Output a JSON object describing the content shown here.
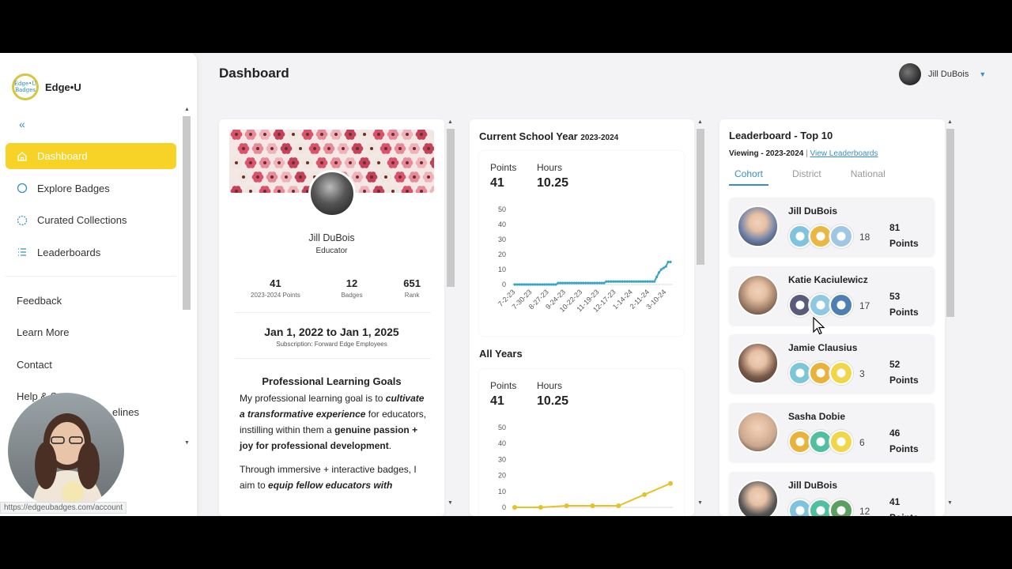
{
  "app": {
    "brand": "Edge•U",
    "logo_text": "Edge•U Badges"
  },
  "sidebar": {
    "collapse_label": "«",
    "items": [
      {
        "label": "Dashboard",
        "icon": "home-icon",
        "active": true
      },
      {
        "label": "Explore Badges",
        "icon": "circle-icon",
        "active": false
      },
      {
        "label": "Curated Collections",
        "icon": "dashed-circle-icon",
        "active": false
      },
      {
        "label": "Leaderboards",
        "icon": "list-icon",
        "active": false
      }
    ],
    "links": [
      "Feedback",
      "Learn More",
      "Contact",
      "Help & S",
      "elines"
    ]
  },
  "status_url": "https://edgeubadges.com/account",
  "header": {
    "title": "Dashboard",
    "user_name": "Jill DuBois"
  },
  "profile": {
    "name": "Jill DuBois",
    "role": "Educator",
    "stats": [
      {
        "value": "41",
        "label": "2023-2024 Points"
      },
      {
        "value": "12",
        "label": "Badges"
      },
      {
        "value": "651",
        "label": "Rank"
      }
    ],
    "subscription_range": "Jan 1, 2022 to Jan 1, 2025",
    "subscription_name": "Subscription: Forward Edge Employees",
    "goals_title": "Professional Learning Goals",
    "goals_p1_a": "My professional learning goal is to ",
    "goals_p1_b": "cultivate a transformative experience",
    "goals_p1_c": " for educators, instilling within them a ",
    "goals_p1_d": "genuine passion + joy for professional development",
    "goals_p1_e": ".",
    "goals_p2_a": "Through immersive + interactive badges, I aim to ",
    "goals_p2_b": "equip fellow educators with"
  },
  "current_year": {
    "title": "Current School Year",
    "year": "2023-2024",
    "points_label": "Points",
    "points_value": "41",
    "hours_label": "Hours",
    "hours_value": "10.25"
  },
  "all_years": {
    "title": "All Years",
    "points_label": "Points",
    "points_value": "41",
    "hours_label": "Hours",
    "hours_value": "10.25"
  },
  "chart_data": [
    {
      "type": "line",
      "title": "Current School Year 2023-2024",
      "ylim": [
        0,
        50
      ],
      "yticks": [
        0,
        10,
        20,
        30,
        40,
        50
      ],
      "x_tick_labels": [
        "7-2-23",
        "7-30-23",
        "8-27-23",
        "9-24-23",
        "10-22-23",
        "11-19-23",
        "12-17-23",
        "1-14-24",
        "2-11-24",
        "3-10-24"
      ],
      "color": "#3aa6c4",
      "series": [
        {
          "values": [
            0,
            0,
            0,
            0,
            0,
            0,
            0,
            0,
            0,
            0,
            0,
            0,
            0,
            0,
            0,
            0,
            0,
            0,
            0,
            1,
            1,
            1,
            1,
            1,
            1,
            1,
            1,
            1,
            1,
            1,
            1,
            1,
            1,
            1,
            1,
            1,
            1,
            1,
            1,
            1,
            2,
            2,
            2,
            2,
            2,
            2,
            2,
            2,
            2,
            2,
            2,
            2,
            2,
            2,
            2,
            2,
            2,
            2,
            2,
            2,
            2,
            2,
            5,
            8,
            10,
            11,
            12,
            15,
            15
          ]
        }
      ]
    },
    {
      "type": "line",
      "title": "All Years",
      "ylim": [
        0,
        50
      ],
      "yticks": [
        0,
        10,
        20,
        30,
        40,
        50
      ],
      "color": "#e6c229",
      "series": [
        {
          "values": [
            0,
            0,
            1,
            1,
            1,
            8,
            15
          ]
        }
      ]
    }
  ],
  "leaderboard": {
    "title": "Leaderboard - Top 10",
    "viewing_label": "Viewing - 2023-2024",
    "separator": "|",
    "view_link": "View Leaderboards",
    "tabs": [
      {
        "label": "Cohort",
        "active": true
      },
      {
        "label": "District",
        "active": false
      },
      {
        "label": "National",
        "active": false
      }
    ],
    "points_word": "Points",
    "rows": [
      {
        "name": "Jill DuBois",
        "badge_count": "18",
        "points": "81",
        "avatar_color": "#6a7fa8",
        "badges": [
          "#7fc3df",
          "#e8b842",
          "#9fc7e3"
        ]
      },
      {
        "name": "Katie Kaciulewicz",
        "badge_count": "17",
        "points": "53",
        "avatar_color": "#a0806a",
        "badges": [
          "#5a5a7a",
          "#8fc8e0",
          "#4f7fb0"
        ]
      },
      {
        "name": "Jamie Clausius",
        "badge_count": "3",
        "points": "52",
        "avatar_color": "#7a5a4a",
        "badges": [
          "#7cc6d9",
          "#e9b23a",
          "#f2d64a"
        ]
      },
      {
        "name": "Sasha Dobie",
        "badge_count": "6",
        "points": "46",
        "avatar_color": "#c9a890",
        "badges": [
          "#e9b23a",
          "#4fbfa0",
          "#f2d64a"
        ]
      },
      {
        "name": "Jill DuBois",
        "badge_count": "12",
        "points": "41",
        "avatar_color": "#555555",
        "badges": [
          "#7fc3df",
          "#4fbfa0",
          "#5aa060"
        ]
      }
    ]
  },
  "colors": {
    "accent_yellow": "#f6d326",
    "accent_blue": "#3a8fc0"
  }
}
